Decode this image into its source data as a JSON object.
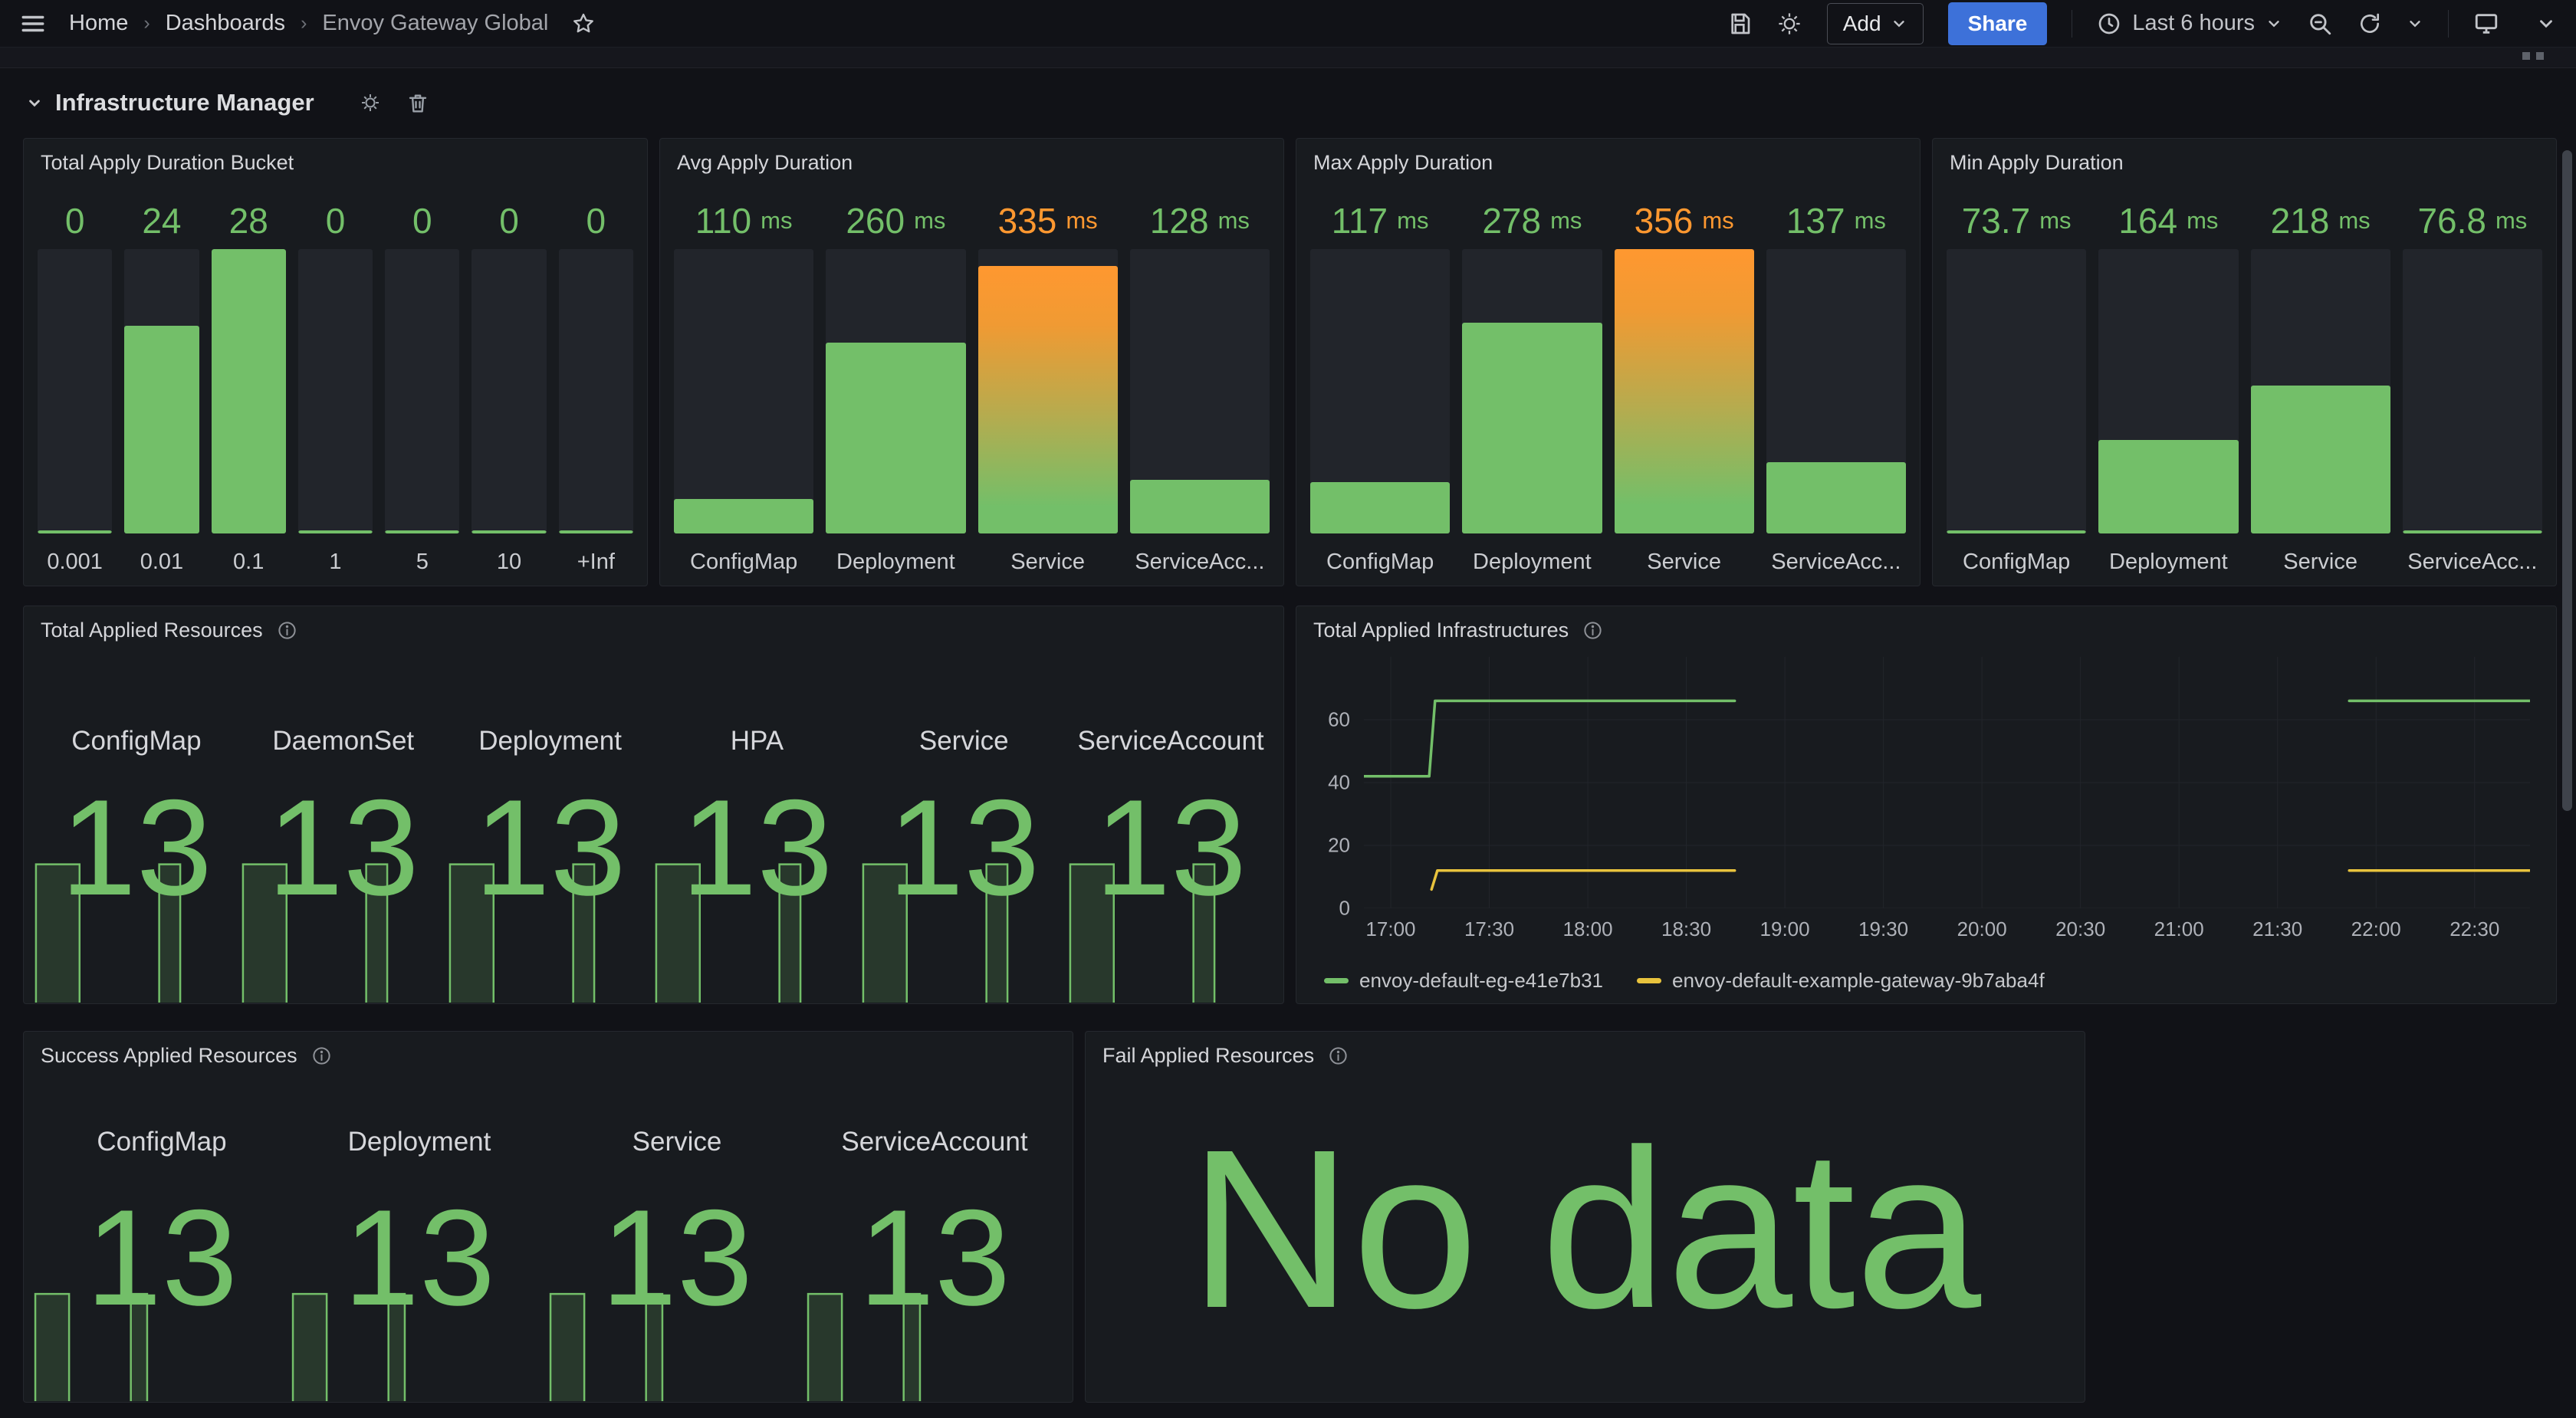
{
  "nav": {
    "breadcrumbs": [
      "Home",
      "Dashboards",
      "Envoy Gateway Global"
    ],
    "add_label": "Add",
    "share_label": "Share",
    "time_range": "Last 6 hours"
  },
  "section": {
    "title": "Infrastructure Manager"
  },
  "colors": {
    "green": "#73bf69",
    "orange": "#ff9830",
    "yellow": "#e8c33d",
    "accent_blue": "#3d71d9"
  },
  "chart_data": [
    {
      "id": "bucket",
      "type": "bar",
      "title": "Total Apply Duration Bucket",
      "categories": [
        "0.001",
        "0.01",
        "0.1",
        "1",
        "5",
        "10",
        "+Inf"
      ],
      "values": [
        0,
        24,
        28,
        0,
        0,
        0,
        0
      ],
      "display_values": [
        "0",
        "24",
        "28",
        "0",
        "0",
        "0",
        "0"
      ],
      "unit": "",
      "ylim": [
        0,
        28
      ],
      "heights_pct": [
        0,
        73,
        100,
        0,
        0,
        0,
        0
      ],
      "label_colors": [
        "#73bf69",
        "#73bf69",
        "#73bf69",
        "#73bf69",
        "#73bf69",
        "#73bf69",
        "#73bf69"
      ],
      "bar_styles": [
        "solid",
        "solid",
        "solid",
        "solid",
        "solid",
        "solid",
        "solid"
      ]
    },
    {
      "id": "avg",
      "type": "bar",
      "title": "Avg Apply Duration",
      "categories": [
        "ConfigMap",
        "Deployment",
        "Service",
        "ServiceAcc..."
      ],
      "values": [
        110,
        260,
        335,
        128
      ],
      "display_values": [
        "110",
        "260",
        "335",
        "128"
      ],
      "unit": "ms",
      "ylim": [
        80,
        350
      ],
      "heights_pct": [
        12,
        67,
        94,
        19
      ],
      "label_colors": [
        "#73bf69",
        "#73bf69",
        "#ff9830",
        "#73bf69"
      ],
      "bar_styles": [
        "solid",
        "solid",
        "gradient",
        "solid"
      ]
    },
    {
      "id": "max",
      "type": "bar",
      "title": "Max Apply Duration",
      "categories": [
        "ConfigMap",
        "Deployment",
        "Service",
        "ServiceAcc..."
      ],
      "values": [
        117,
        278,
        356,
        137
      ],
      "display_values": [
        "117",
        "278",
        "356",
        "137"
      ],
      "unit": "ms",
      "ylim": [
        60,
        356
      ],
      "heights_pct": [
        18,
        74,
        100,
        25
      ],
      "label_colors": [
        "#73bf69",
        "#73bf69",
        "#ff9830",
        "#73bf69"
      ],
      "bar_styles": [
        "solid",
        "solid",
        "gradient",
        "solid"
      ]
    },
    {
      "id": "min",
      "type": "bar",
      "title": "Min Apply Duration",
      "categories": [
        "ConfigMap",
        "Deployment",
        "Service",
        "ServiceAcc..."
      ],
      "values": [
        73.7,
        164,
        218,
        76.8
      ],
      "display_values": [
        "73.7",
        "164",
        "218",
        "76.8"
      ],
      "unit": "ms",
      "ylim": [
        73,
        350
      ],
      "heights_pct": [
        0,
        33,
        52,
        1
      ],
      "label_colors": [
        "#73bf69",
        "#73bf69",
        "#73bf69",
        "#73bf69"
      ],
      "bar_styles": [
        "solid",
        "solid",
        "solid",
        "solid"
      ]
    },
    {
      "id": "resources",
      "type": "stat-row",
      "title": "Total Applied Resources",
      "items": [
        {
          "label": "ConfigMap",
          "value": "13"
        },
        {
          "label": "DaemonSet",
          "value": "13"
        },
        {
          "label": "Deployment",
          "value": "13"
        },
        {
          "label": "HPA",
          "value": "13"
        },
        {
          "label": "Service",
          "value": "13"
        },
        {
          "label": "ServiceAccount",
          "value": "13"
        }
      ],
      "sparkline": {
        "max": 13,
        "value": 13,
        "segments": [
          {
            "from": 2,
            "to": 31
          },
          {
            "from": 84,
            "to": 98
          }
        ]
      }
    },
    {
      "id": "infra",
      "type": "line",
      "title": "Total Applied Infrastructures",
      "ylabel": "",
      "xlabel": "",
      "y_ticks": [
        0,
        20,
        40,
        60
      ],
      "y_max": 80,
      "x_ticks": [
        {
          "label": "17:00",
          "pct": 2.3
        },
        {
          "label": "17:30",
          "pct": 10.75
        },
        {
          "label": "18:00",
          "pct": 19.2
        },
        {
          "label": "18:30",
          "pct": 27.65
        },
        {
          "label": "19:00",
          "pct": 36.1
        },
        {
          "label": "19:30",
          "pct": 44.55
        },
        {
          "label": "20:00",
          "pct": 53.0
        },
        {
          "label": "20:30",
          "pct": 61.45
        },
        {
          "label": "21:00",
          "pct": 69.9
        },
        {
          "label": "21:30",
          "pct": 78.35
        },
        {
          "label": "22:00",
          "pct": 86.8
        },
        {
          "label": "22:30",
          "pct": 95.25
        }
      ],
      "series": [
        {
          "name": "envoy-default-eg-e41e7b31",
          "color": "#73bf69",
          "segments": [
            [
              [
                0,
                42
              ],
              [
                5.6,
                42
              ],
              [
                6.1,
                66
              ],
              [
                31.8,
                66
              ]
            ],
            [
              [
                84.5,
                66
              ],
              [
                100,
                66
              ]
            ]
          ]
        },
        {
          "name": "envoy-default-example-gateway-9b7aba4f",
          "color": "#e8c33d",
          "segments": [
            [
              [
                5.8,
                6
              ],
              [
                6.3,
                12
              ],
              [
                31.8,
                12
              ]
            ],
            [
              [
                84.5,
                12
              ],
              [
                100,
                12
              ]
            ]
          ]
        }
      ]
    },
    {
      "id": "success",
      "type": "stat-row",
      "title": "Success Applied Resources",
      "items": [
        {
          "label": "ConfigMap",
          "value": "13"
        },
        {
          "label": "Deployment",
          "value": "13"
        },
        {
          "label": "Service",
          "value": "13"
        },
        {
          "label": "ServiceAccount",
          "value": "13"
        }
      ],
      "sparkline": {
        "max": 13,
        "value": 13,
        "segments": [
          {
            "from": 2,
            "to": 31
          },
          {
            "from": 84,
            "to": 98
          }
        ]
      }
    },
    {
      "id": "fail",
      "type": "no-data",
      "title": "Fail Applied Resources",
      "message": "No data"
    }
  ]
}
